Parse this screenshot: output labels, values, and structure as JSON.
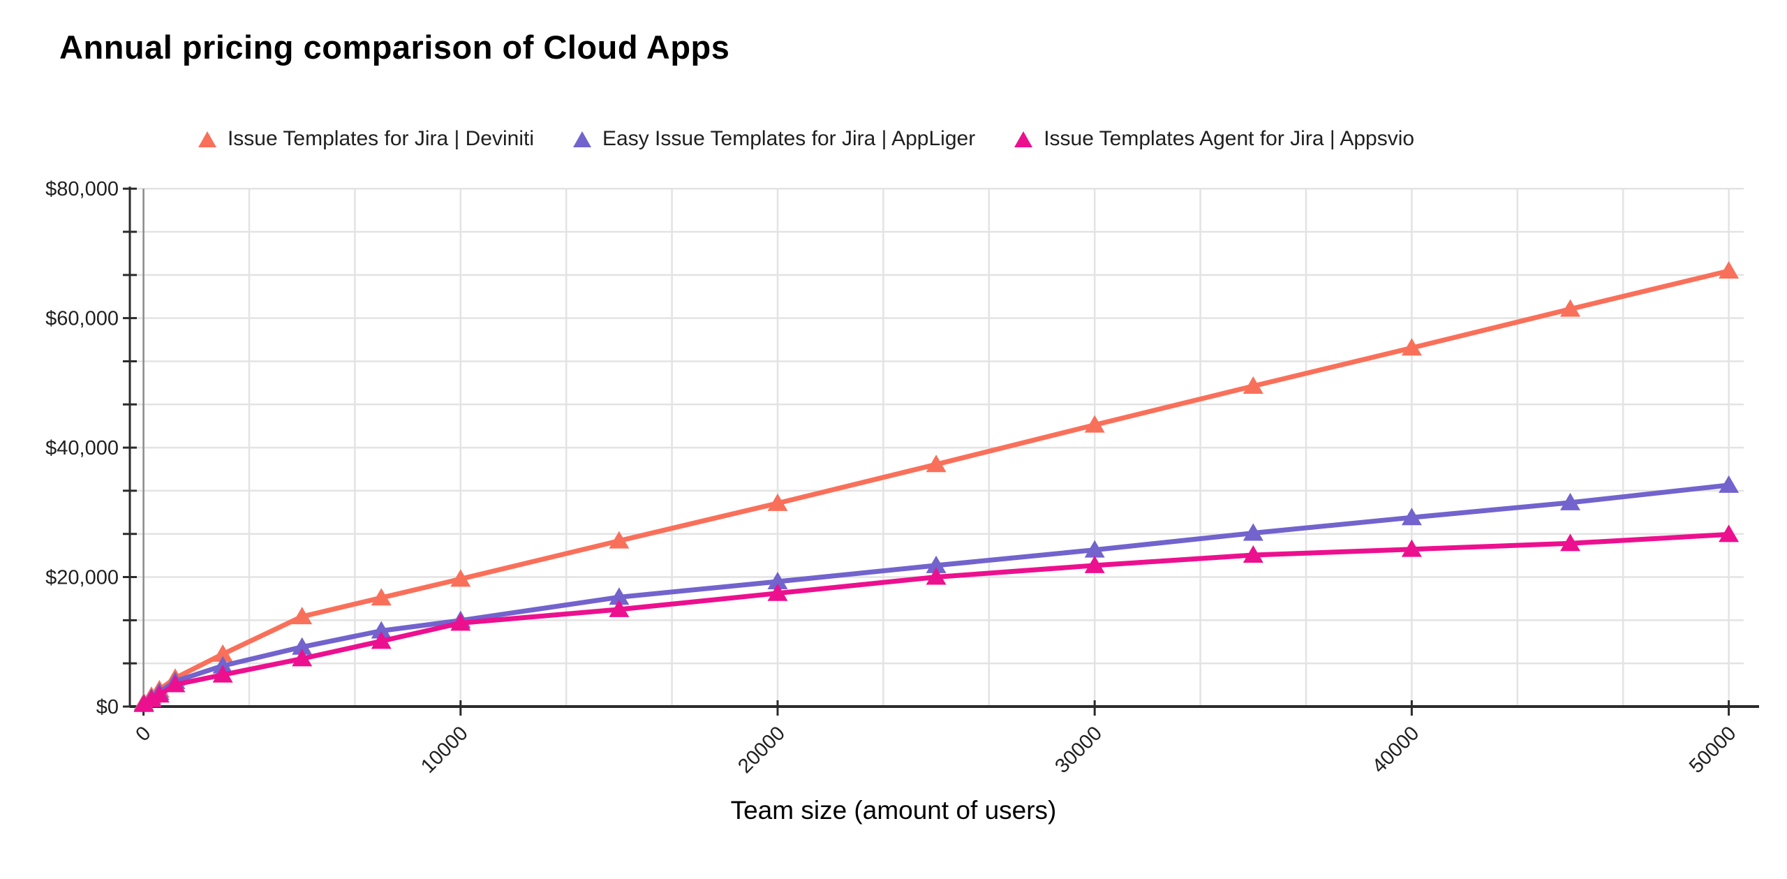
{
  "chart_data": {
    "type": "line",
    "title": "Annual pricing comparison of Cloud Apps",
    "xlabel": "Team size (amount of users)",
    "ylabel": "",
    "marker": "triangle-up",
    "grid": true,
    "legend_position": "top",
    "xlim": [
      0,
      50000
    ],
    "ylim": [
      0,
      80000
    ],
    "x": [
      10,
      250,
      500,
      1000,
      2500,
      5000,
      7500,
      10000,
      15000,
      20000,
      25000,
      30000,
      35000,
      40000,
      45000,
      50000
    ],
    "series": [
      {
        "name": "Issue Templates for Jira | Deviniti",
        "color": "#F9705A",
        "values": [
          600,
          1600,
          2600,
          4400,
          8100,
          13900,
          16800,
          19700,
          25600,
          31400,
          37400,
          43500,
          49500,
          55400,
          61400,
          67300
        ]
      },
      {
        "name": "Easy Issue Templates for Jira | AppLiger",
        "color": "#7263CD",
        "values": [
          450,
          1300,
          2200,
          3900,
          6300,
          9200,
          11700,
          13300,
          16900,
          19300,
          21800,
          24200,
          26800,
          29200,
          31500,
          34200
        ]
      },
      {
        "name": "Issue Templates Agent for Jira | Appsvio",
        "color": "#EC108F",
        "values": [
          350,
          1100,
          1800,
          3400,
          4900,
          7400,
          10100,
          12900,
          15000,
          17500,
          20000,
          21800,
          23400,
          24300,
          25200,
          26600
        ]
      }
    ],
    "x_axis": {
      "tick_values": [
        0,
        10000,
        20000,
        30000,
        40000,
        50000
      ],
      "tick_labels": [
        "0",
        "10000",
        "20000",
        "30000",
        "40000",
        "50000"
      ],
      "minor_gridline_step": 3333.3333
    },
    "y_axis": {
      "label_values": [
        0,
        20000,
        40000,
        60000,
        80000
      ],
      "labels": [
        "$0",
        "$20,000",
        "$40,000",
        "$60,000",
        "$80,000"
      ],
      "gridline_step": 6666.6667
    }
  },
  "colors": {
    "background": "#ffffff",
    "gridline": "#e3e3e3",
    "zero_line": "#8a8a8a",
    "axis": "#2b2b2b",
    "tick": "#2b2b2b",
    "text": "#000000",
    "tick_label": "#1f1f1f"
  }
}
